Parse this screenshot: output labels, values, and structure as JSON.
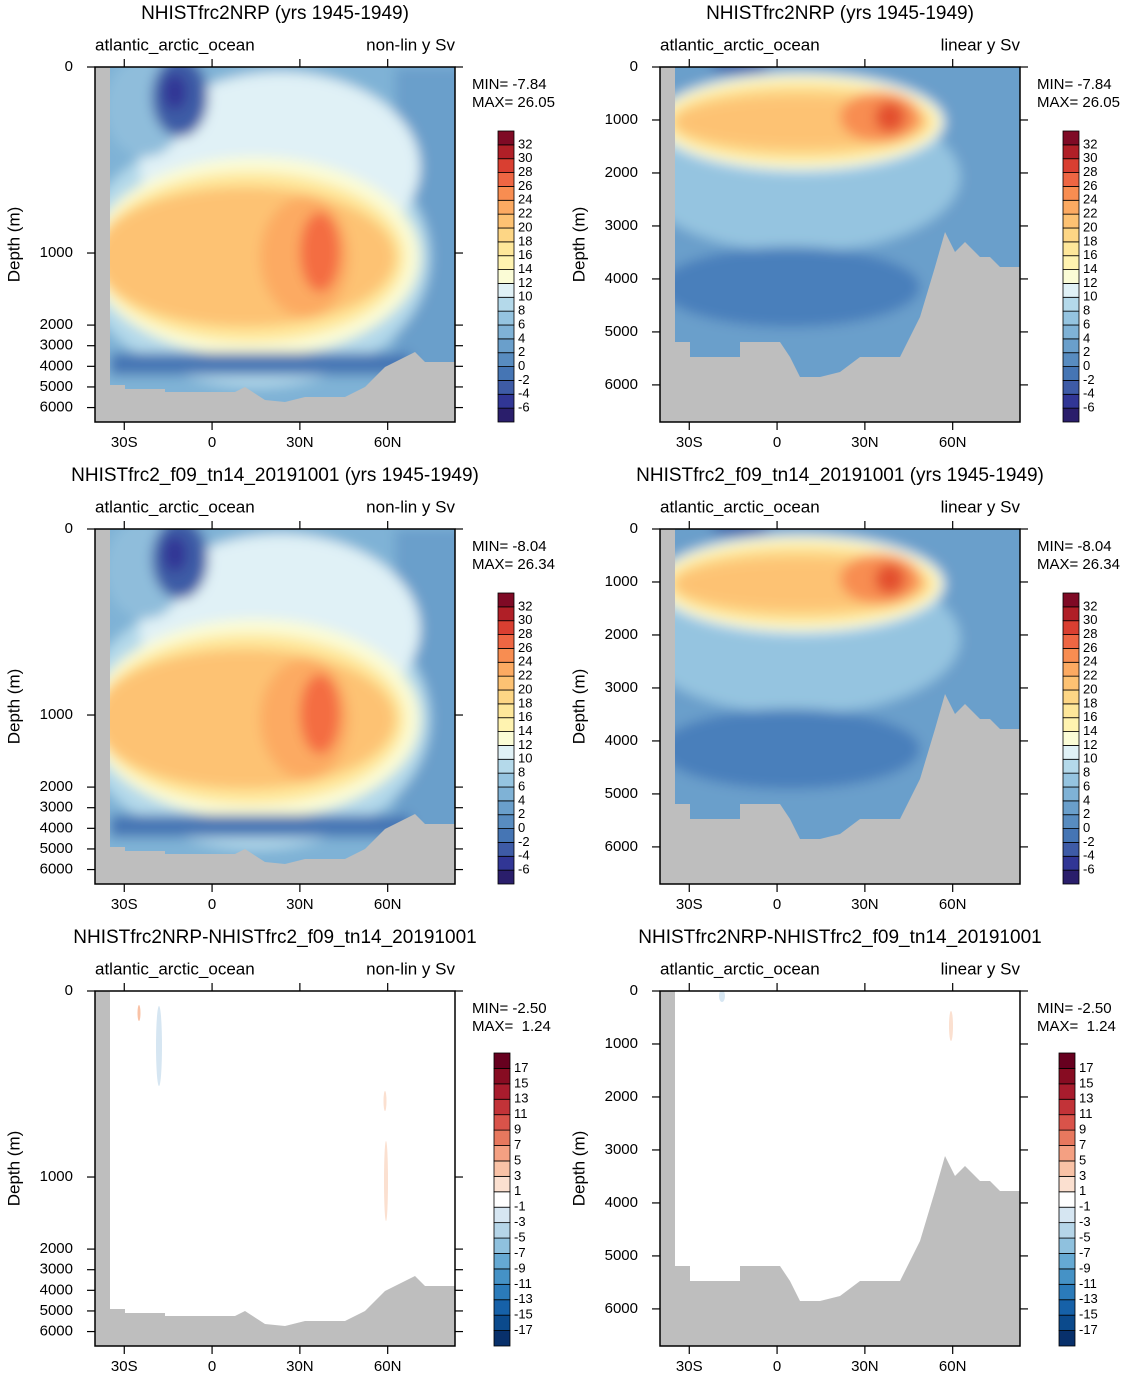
{
  "chart_data": [
    {
      "type": "contour",
      "title": "NHISTfrc2NRP (yrs 1945-1949)",
      "region": "atlantic_arctic_ocean",
      "scale_label": "non-lin y Sv",
      "y_label": "Depth (m)",
      "y_scale": "nonlinear",
      "stats": [
        "MIN= -7.84",
        "MAX= 26.05"
      ],
      "xlim": [
        -40,
        83
      ],
      "xticks": [
        {
          "value": -30,
          "label": "30S"
        },
        0,
        {
          "value": 30,
          "label": "30N"
        },
        {
          "value": 60,
          "label": "60N"
        }
      ],
      "ylim": [
        0,
        6700
      ],
      "yticks": [
        0,
        1000,
        2000,
        3000,
        4000,
        5000,
        6000
      ],
      "colorbar": {
        "levels": [
          -6,
          -4,
          -2,
          0,
          2,
          4,
          6,
          8,
          10,
          12,
          14,
          16,
          18,
          20,
          22,
          24,
          26,
          28,
          30,
          32
        ],
        "colors": [
          "#2a1e6b",
          "#313695",
          "#3e5ba6",
          "#4575b4",
          "#588cc0",
          "#6a9fcb",
          "#7fb2d6",
          "#95c4e0",
          "#b4d9ea",
          "#e0f1f6",
          "#fbfcd6",
          "#fff3b0",
          "#fee79a",
          "#fdd685",
          "#fdc273",
          "#fcaa62",
          "#f88d51",
          "#ee6643",
          "#d93f31",
          "#b01f27",
          "#7f0a25"
        ]
      }
    },
    {
      "type": "contour",
      "title": "NHISTfrc2NRP (yrs 1945-1949)",
      "region": "atlantic_arctic_ocean",
      "scale_label": "linear y Sv",
      "y_label": "Depth (m)",
      "y_scale": "linear",
      "stats": [
        "MIN= -7.84",
        "MAX= 26.05"
      ],
      "xlim": [
        -40,
        83
      ],
      "xticks": [
        {
          "value": -30,
          "label": "30S"
        },
        0,
        {
          "value": 30,
          "label": "30N"
        },
        {
          "value": 60,
          "label": "60N"
        }
      ],
      "ylim": [
        0,
        6700
      ],
      "yticks": [
        0,
        1000,
        2000,
        3000,
        4000,
        5000,
        6000
      ],
      "colorbar": {
        "levels": [
          -6,
          -4,
          -2,
          0,
          2,
          4,
          6,
          8,
          10,
          12,
          14,
          16,
          18,
          20,
          22,
          24,
          26,
          28,
          30,
          32
        ],
        "colors": [
          "#2a1e6b",
          "#313695",
          "#3e5ba6",
          "#4575b4",
          "#588cc0",
          "#6a9fcb",
          "#7fb2d6",
          "#95c4e0",
          "#b4d9ea",
          "#e0f1f6",
          "#fbfcd6",
          "#fff3b0",
          "#fee79a",
          "#fdd685",
          "#fdc273",
          "#fcaa62",
          "#f88d51",
          "#ee6643",
          "#d93f31",
          "#b01f27",
          "#7f0a25"
        ]
      }
    },
    {
      "type": "contour",
      "title": "NHISTfrc2_f09_tn14_20191001 (yrs 1945-1949)",
      "region": "atlantic_arctic_ocean",
      "scale_label": "non-lin y Sv",
      "y_label": "Depth (m)",
      "y_scale": "nonlinear",
      "stats": [
        "MIN= -8.04",
        "MAX= 26.34"
      ],
      "xlim": [
        -40,
        83
      ],
      "xticks": [
        {
          "value": -30,
          "label": "30S"
        },
        0,
        {
          "value": 30,
          "label": "30N"
        },
        {
          "value": 60,
          "label": "60N"
        }
      ],
      "ylim": [
        0,
        6700
      ],
      "yticks": [
        0,
        1000,
        2000,
        3000,
        4000,
        5000,
        6000
      ],
      "colorbar": {
        "levels": [
          -6,
          -4,
          -2,
          0,
          2,
          4,
          6,
          8,
          10,
          12,
          14,
          16,
          18,
          20,
          22,
          24,
          26,
          28,
          30,
          32
        ],
        "colors": [
          "#2a1e6b",
          "#313695",
          "#3e5ba6",
          "#4575b4",
          "#588cc0",
          "#6a9fcb",
          "#7fb2d6",
          "#95c4e0",
          "#b4d9ea",
          "#e0f1f6",
          "#fbfcd6",
          "#fff3b0",
          "#fee79a",
          "#fdd685",
          "#fdc273",
          "#fcaa62",
          "#f88d51",
          "#ee6643",
          "#d93f31",
          "#b01f27",
          "#7f0a25"
        ]
      }
    },
    {
      "type": "contour",
      "title": "NHISTfrc2_f09_tn14_20191001 (yrs 1945-1949)",
      "region": "atlantic_arctic_ocean",
      "scale_label": "linear y Sv",
      "y_label": "Depth (m)",
      "y_scale": "linear",
      "stats": [
        "MIN= -8.04",
        "MAX= 26.34"
      ],
      "xlim": [
        -40,
        83
      ],
      "xticks": [
        {
          "value": -30,
          "label": "30S"
        },
        0,
        {
          "value": 30,
          "label": "30N"
        },
        {
          "value": 60,
          "label": "60N"
        }
      ],
      "ylim": [
        0,
        6700
      ],
      "yticks": [
        0,
        1000,
        2000,
        3000,
        4000,
        5000,
        6000
      ],
      "colorbar": {
        "levels": [
          -6,
          -4,
          -2,
          0,
          2,
          4,
          6,
          8,
          10,
          12,
          14,
          16,
          18,
          20,
          22,
          24,
          26,
          28,
          30,
          32
        ],
        "colors": [
          "#2a1e6b",
          "#313695",
          "#3e5ba6",
          "#4575b4",
          "#588cc0",
          "#6a9fcb",
          "#7fb2d6",
          "#95c4e0",
          "#b4d9ea",
          "#e0f1f6",
          "#fbfcd6",
          "#fff3b0",
          "#fee79a",
          "#fdd685",
          "#fdc273",
          "#fcaa62",
          "#f88d51",
          "#ee6643",
          "#d93f31",
          "#b01f27",
          "#7f0a25"
        ]
      }
    },
    {
      "type": "contour",
      "title": "NHISTfrc2NRP-NHISTfrc2_f09_tn14_20191001",
      "region": "atlantic_arctic_ocean",
      "scale_label": "non-lin y Sv",
      "y_label": "Depth (m)",
      "y_scale": "nonlinear",
      "stats": [
        "MIN= -2.50",
        "MAX=  1.24"
      ],
      "xlim": [
        -40,
        83
      ],
      "xticks": [
        {
          "value": -30,
          "label": "30S"
        },
        0,
        {
          "value": 30,
          "label": "30N"
        },
        {
          "value": 60,
          "label": "60N"
        }
      ],
      "ylim": [
        0,
        6700
      ],
      "yticks": [
        0,
        1000,
        2000,
        3000,
        4000,
        5000,
        6000
      ],
      "colorbar": {
        "levels": [
          -17,
          -15,
          -13,
          -11,
          -9,
          -7,
          -5,
          -3,
          -1,
          1,
          3,
          5,
          7,
          9,
          11,
          13,
          15,
          17
        ],
        "colors": [
          "#08306b",
          "#0b4a8c",
          "#1661a8",
          "#2b7bba",
          "#4592c6",
          "#65a9d3",
          "#8fc1de",
          "#b5d5e8",
          "#d6e6f2",
          "#ffffff",
          "#fbe0d0",
          "#f9c2a6",
          "#f4a082",
          "#e7785e",
          "#d9534a",
          "#c23338",
          "#a81c2d",
          "#870c22",
          "#67001f"
        ]
      }
    },
    {
      "type": "contour",
      "title": "NHISTfrc2NRP-NHISTfrc2_f09_tn14_20191001",
      "region": "atlantic_arctic_ocean",
      "scale_label": "linear y Sv",
      "y_label": "Depth (m)",
      "y_scale": "linear",
      "stats": [
        "MIN= -2.50",
        "MAX=  1.24"
      ],
      "xlim": [
        -40,
        83
      ],
      "xticks": [
        {
          "value": -30,
          "label": "30S"
        },
        0,
        {
          "value": 30,
          "label": "30N"
        },
        {
          "value": 60,
          "label": "60N"
        }
      ],
      "ylim": [
        0,
        6700
      ],
      "yticks": [
        0,
        1000,
        2000,
        3000,
        4000,
        5000,
        6000
      ],
      "colorbar": {
        "levels": [
          -17,
          -15,
          -13,
          -11,
          -9,
          -7,
          -5,
          -3,
          -1,
          1,
          3,
          5,
          7,
          9,
          11,
          13,
          15,
          17
        ],
        "colors": [
          "#08306b",
          "#0b4a8c",
          "#1661a8",
          "#2b7bba",
          "#4592c6",
          "#65a9d3",
          "#8fc1de",
          "#b5d5e8",
          "#d6e6f2",
          "#ffffff",
          "#fbe0d0",
          "#f9c2a6",
          "#f4a082",
          "#e7785e",
          "#d9534a",
          "#c23338",
          "#a81c2d",
          "#870c22",
          "#67001f"
        ]
      }
    }
  ]
}
